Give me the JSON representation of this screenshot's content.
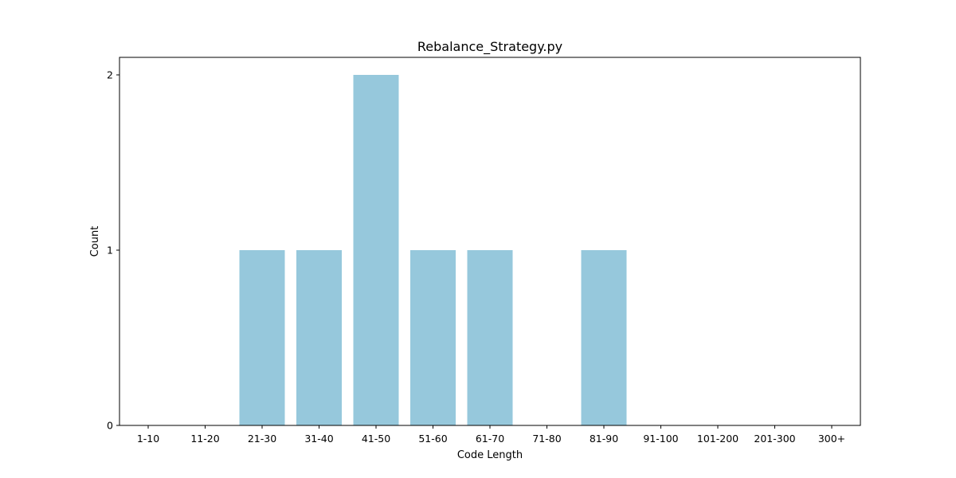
{
  "chart_data": {
    "type": "bar",
    "title": "Rebalance_Strategy.py",
    "xlabel": "Code Length",
    "ylabel": "Count",
    "categories": [
      "1-10",
      "11-20",
      "21-30",
      "31-40",
      "41-50",
      "51-60",
      "61-70",
      "71-80",
      "81-90",
      "91-100",
      "101-200",
      "201-300",
      "300+"
    ],
    "values": [
      0,
      0,
      1,
      1,
      2,
      1,
      1,
      0,
      1,
      0,
      0,
      0,
      0
    ],
    "ylim": [
      0,
      2.1
    ],
    "yticks": [
      0,
      1,
      2
    ],
    "grid": false,
    "legend": "none",
    "bar_color": "#96c8dc"
  }
}
